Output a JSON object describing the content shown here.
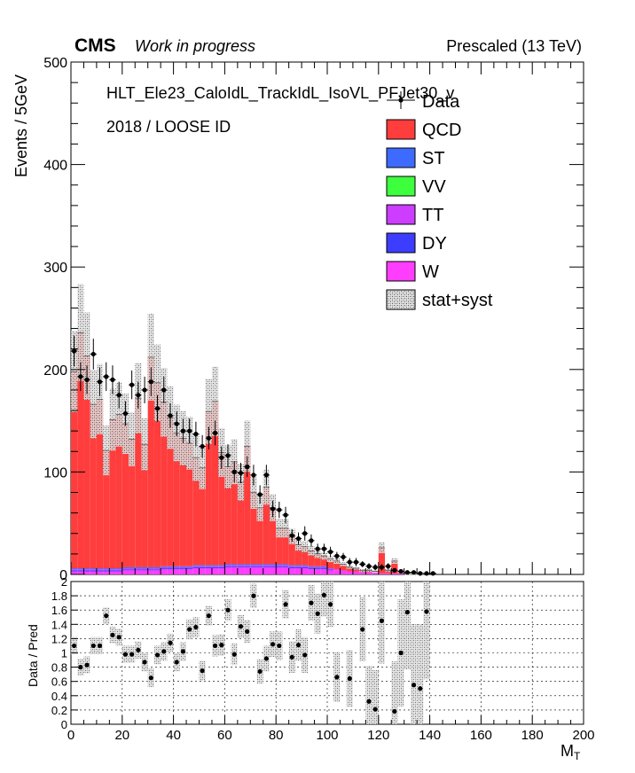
{
  "header": {
    "experiment": "CMS",
    "status": "Work in progress",
    "energy": "Prescaled (13 TeV)"
  },
  "annotations": {
    "trigger": "HLT_Ele23_CaloIdL_TrackIdL_IsoVL_PFJet30_v",
    "selection": "2018 / LOOSE ID"
  },
  "legend": [
    {
      "label": "Data",
      "style": "marker",
      "color": "#000000"
    },
    {
      "label": "QCD",
      "style": "fill",
      "color": "#ff3d3d"
    },
    {
      "label": "ST",
      "style": "fill",
      "color": "#3d6bff"
    },
    {
      "label": "VV",
      "style": "fill",
      "color": "#3dff3d"
    },
    {
      "label": "TT",
      "style": "fill",
      "color": "#cc3dff"
    },
    {
      "label": "DY",
      "style": "fill",
      "color": "#3d3dff"
    },
    {
      "label": "W",
      "style": "fill",
      "color": "#ff3dff"
    },
    {
      "label": "stat+syst",
      "style": "hatch",
      "color": "#999999"
    }
  ],
  "chart_data": [
    {
      "type": "bar",
      "stacked": true,
      "ylabel": "Events / 5GeV",
      "xlim": [
        0,
        200
      ],
      "ylim": [
        0,
        500
      ],
      "yticks": [
        "0",
        "100",
        "200",
        "300",
        "400",
        "500"
      ],
      "bin_width": 2.5,
      "x": [
        1.25,
        3.75,
        6.25,
        8.75,
        11.25,
        13.75,
        16.25,
        18.75,
        21.25,
        23.75,
        26.25,
        28.75,
        31.25,
        33.75,
        36.25,
        38.75,
        41.25,
        43.75,
        46.25,
        48.75,
        51.25,
        53.75,
        56.25,
        58.75,
        61.25,
        63.75,
        66.25,
        68.75,
        71.25,
        73.75,
        76.25,
        78.75,
        81.25,
        83.75,
        86.25,
        88.75,
        91.25,
        93.75,
        96.25,
        98.75,
        101.25,
        103.75,
        106.25,
        108.75,
        111.25,
        113.75,
        116.25,
        118.75,
        121.25,
        123.75,
        126.25,
        128.75,
        131.25,
        133.75,
        136.25,
        138.75,
        141.25,
        143.75
      ],
      "series": [
        {
          "name": "QCD",
          "values": [
            192,
            230,
            207,
            160,
            165,
            115,
            145,
            150,
            140,
            125,
            165,
            120,
            205,
            180,
            160,
            145,
            130,
            125,
            120,
            105,
            95,
            150,
            160,
            110,
            95,
            100,
            80,
            115,
            70,
            55,
            75,
            55,
            35,
            35,
            28,
            20,
            18,
            15,
            12,
            10,
            9,
            8,
            6,
            4,
            3,
            2,
            2,
            1,
            25,
            3,
            12,
            2,
            1,
            1,
            1,
            0,
            0,
            0
          ]
        },
        {
          "name": "ST",
          "values": [
            1,
            1,
            1,
            1,
            1,
            1,
            1,
            1,
            1,
            1,
            1,
            1,
            1,
            1,
            1,
            1,
            1,
            1,
            1,
            1,
            1,
            1,
            1,
            1,
            1,
            1,
            1,
            1,
            1,
            1,
            1,
            1,
            1,
            1,
            1,
            1,
            1,
            1,
            1,
            1,
            0,
            0,
            0,
            0,
            0,
            0,
            0,
            0,
            0,
            0,
            0,
            0,
            0,
            0,
            0,
            0,
            0,
            0
          ]
        },
        {
          "name": "VV",
          "values": [
            0,
            0,
            0,
            0,
            0,
            0,
            0,
            0,
            0,
            0,
            0,
            0,
            0,
            0,
            0,
            0,
            0,
            0,
            0,
            0,
            0,
            0,
            0,
            0,
            0,
            0,
            0,
            0,
            0,
            0,
            0,
            0,
            0,
            0,
            0,
            0,
            0,
            0,
            0,
            0,
            0,
            0,
            0,
            0,
            0,
            0,
            0,
            0,
            0,
            0,
            0,
            0,
            0,
            0,
            0,
            0,
            0,
            0
          ]
        },
        {
          "name": "TT",
          "values": [
            1,
            1,
            1,
            1,
            1,
            1,
            1,
            1,
            1,
            1,
            1,
            1,
            1,
            1,
            1,
            1,
            1,
            1,
            1,
            1,
            1,
            1,
            1,
            1,
            1,
            1,
            1,
            1,
            1,
            1,
            1,
            1,
            1,
            1,
            1,
            1,
            1,
            1,
            1,
            1,
            1,
            1,
            1,
            0,
            0,
            0,
            0,
            0,
            0,
            0,
            0,
            0,
            0,
            0,
            0,
            0,
            0,
            0
          ]
        },
        {
          "name": "DY",
          "values": [
            1,
            1,
            1,
            1,
            1,
            1,
            1,
            1,
            1,
            1,
            1,
            1,
            1,
            1,
            1,
            1,
            1,
            1,
            1,
            1,
            1,
            1,
            1,
            1,
            1,
            1,
            1,
            1,
            1,
            1,
            1,
            1,
            1,
            1,
            1,
            1,
            1,
            1,
            1,
            1,
            1,
            0,
            0,
            0,
            0,
            0,
            0,
            0,
            0,
            0,
            0,
            0,
            0,
            0,
            0,
            0,
            0,
            0
          ]
        },
        {
          "name": "W",
          "values": [
            3,
            3,
            3,
            3,
            3,
            3,
            3,
            3,
            4,
            4,
            4,
            4,
            4,
            4,
            5,
            5,
            5,
            5,
            5,
            6,
            6,
            6,
            6,
            6,
            7,
            7,
            7,
            7,
            7,
            7,
            7,
            7,
            7,
            7,
            6,
            6,
            6,
            5,
            5,
            5,
            4,
            4,
            3,
            3,
            3,
            2,
            2,
            2,
            1,
            1,
            1,
            1,
            0,
            0,
            0,
            0,
            0,
            0
          ]
        }
      ],
      "data_points": {
        "name": "Data",
        "x": [
          1.25,
          3.75,
          6.25,
          8.75,
          11.25,
          13.75,
          16.25,
          18.75,
          21.25,
          23.75,
          26.25,
          28.75,
          31.25,
          33.75,
          36.25,
          38.75,
          41.25,
          43.75,
          46.25,
          48.75,
          51.25,
          53.75,
          56.25,
          58.75,
          61.25,
          63.75,
          66.25,
          68.75,
          71.25,
          73.75,
          76.25,
          78.75,
          81.25,
          83.75,
          86.25,
          88.75,
          91.25,
          93.75,
          96.25,
          98.75,
          101.25,
          103.75,
          106.25,
          108.75,
          111.25,
          113.75,
          116.25,
          118.75,
          121.25,
          123.75,
          126.25,
          128.75,
          131.25,
          133.75,
          136.25,
          138.75,
          141.25
        ],
        "y": [
          218,
          193,
          190,
          215,
          188,
          193,
          190,
          175,
          157,
          185,
          175,
          180,
          188,
          162,
          180,
          155,
          147,
          140,
          140,
          137,
          125,
          133,
          138,
          114,
          116,
          100,
          99,
          105,
          97,
          78,
          97,
          64,
          63,
          58,
          38,
          35,
          40,
          33,
          25,
          25,
          22,
          18,
          17,
          12,
          12,
          10,
          8,
          7,
          7,
          8,
          4,
          3,
          2,
          2,
          1,
          1,
          1
        ],
        "yerr_up": [
          15,
          14,
          14,
          15,
          14,
          14,
          14,
          13,
          12,
          14,
          13,
          13,
          14,
          13,
          13,
          12,
          12,
          12,
          12,
          12,
          11,
          11,
          12,
          11,
          11,
          10,
          10,
          10,
          10,
          9,
          10,
          8,
          8,
          8,
          6,
          6,
          7,
          6,
          5,
          5,
          5,
          4,
          4,
          4,
          4,
          3,
          3,
          3,
          3,
          3,
          2,
          2,
          2,
          2,
          1,
          1,
          1
        ],
        "yerr_down": [
          15,
          14,
          14,
          15,
          14,
          14,
          14,
          13,
          12,
          14,
          13,
          13,
          14,
          13,
          13,
          12,
          12,
          12,
          12,
          12,
          11,
          11,
          12,
          11,
          11,
          10,
          10,
          10,
          10,
          9,
          10,
          8,
          8,
          8,
          6,
          6,
          7,
          6,
          5,
          5,
          5,
          4,
          4,
          4,
          4,
          3,
          3,
          3,
          3,
          3,
          2,
          2,
          2,
          2,
          1,
          1,
          1
        ]
      }
    },
    {
      "type": "scatter",
      "ylabel": "Data / Pred",
      "xlabel": "M",
      "xlabel_subscript": "T",
      "xlim": [
        0,
        200
      ],
      "ylim": [
        0,
        2
      ],
      "xticks": [
        "0",
        "20",
        "40",
        "60",
        "80",
        "100",
        "120",
        "140",
        "160",
        "180",
        "200"
      ],
      "yticks": [
        "0",
        "0.2",
        "0.4",
        "0.6",
        "0.8",
        "1",
        "1.2",
        "1.4",
        "1.6",
        "1.8",
        "2"
      ],
      "reference_line": 1,
      "grid": true,
      "x": [
        1.25,
        3.75,
        6.25,
        8.75,
        11.25,
        13.75,
        16.25,
        18.75,
        21.25,
        23.75,
        26.25,
        28.75,
        31.25,
        33.75,
        36.25,
        38.75,
        41.25,
        43.75,
        46.25,
        48.75,
        51.25,
        53.75,
        56.25,
        58.75,
        61.25,
        63.75,
        66.25,
        68.75,
        71.25,
        73.75,
        76.25,
        78.75,
        81.25,
        83.75,
        86.25,
        88.75,
        91.25,
        93.75,
        96.25,
        98.75,
        101.25,
        103.75,
        108.75,
        113.75,
        116.25,
        118.75,
        121.25,
        126.25,
        128.75,
        131.25,
        133.75,
        136.25,
        138.75
      ],
      "y": [
        1.1,
        0.8,
        0.83,
        1.1,
        1.1,
        1.52,
        1.25,
        1.22,
        0.98,
        0.98,
        1.04,
        0.87,
        0.65,
        0.97,
        1.02,
        1.14,
        0.87,
        1.02,
        1.33,
        1.36,
        0.75,
        1.52,
        1.1,
        1.11,
        1.6,
        0.98,
        1.37,
        1.3,
        1.8,
        0.74,
        0.92,
        1.12,
        1.1,
        1.68,
        0.94,
        1.11,
        0.97,
        1.7,
        1.55,
        1.81,
        1.68,
        0.66,
        0.64,
        1.33,
        0.32,
        0.21,
        1.45,
        0.18,
        1.0,
        1.57,
        0.55,
        0.5,
        1.58
      ],
      "band_half_width": [
        0.12,
        0.12,
        0.12,
        0.12,
        0.12,
        0.12,
        0.12,
        0.12,
        0.12,
        0.12,
        0.12,
        0.13,
        0.13,
        0.13,
        0.13,
        0.13,
        0.13,
        0.13,
        0.14,
        0.14,
        0.14,
        0.14,
        0.15,
        0.15,
        0.15,
        0.15,
        0.16,
        0.16,
        0.17,
        0.17,
        0.18,
        0.18,
        0.2,
        0.2,
        0.22,
        0.22,
        0.25,
        0.25,
        0.28,
        0.3,
        0.32,
        0.35,
        0.4,
        0.45,
        0.5,
        0.55,
        0.6,
        0.7,
        0.75,
        0.8,
        0.85,
        0.9,
        0.95
      ]
    }
  ]
}
